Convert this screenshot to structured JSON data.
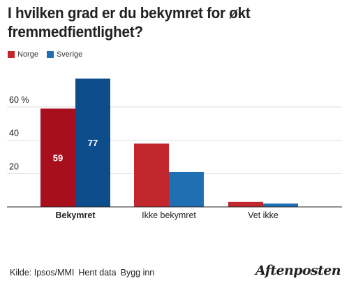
{
  "title": "I hvilken grad er du bekymret for økt fremmedfientlighet?",
  "legend": [
    {
      "name": "Norge",
      "color": "#c1272d"
    },
    {
      "name": "Sverige",
      "color": "#1f6fb3"
    }
  ],
  "footer": {
    "source": "Kilde: Ipsos/MMI",
    "get_data": "Hent data",
    "embed": "Bygg inn"
  },
  "logo": "Aftenposten",
  "chart_data": {
    "type": "bar",
    "categories": [
      "Bekymret",
      "Ikke bekymret",
      "Vet ikke"
    ],
    "series": [
      {
        "name": "Norge",
        "values": [
          59,
          38,
          3
        ],
        "color": "#c1272d",
        "highlight_color": "#a80f1c"
      },
      {
        "name": "Sverige",
        "values": [
          77,
          21,
          2
        ],
        "color": "#1f6fb3",
        "highlight_color": "#0d4d8c"
      }
    ],
    "highlighted_category": "Bekymret",
    "data_labels": {
      "Bekymret": [
        "59",
        "77"
      ]
    },
    "yticks": [
      {
        "value": 20,
        "label": "20"
      },
      {
        "value": 40,
        "label": "40"
      },
      {
        "value": 60,
        "label": "60 %"
      }
    ],
    "ylim": [
      0,
      80
    ],
    "grid": true,
    "legend_position": "top-left"
  }
}
